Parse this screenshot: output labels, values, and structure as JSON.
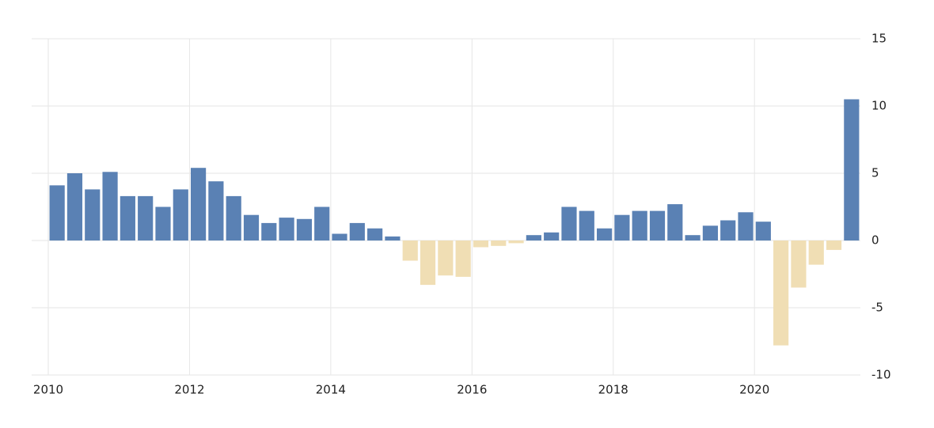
{
  "chart_data": {
    "type": "bar",
    "categories": [
      "2010",
      null,
      null,
      null,
      null,
      null,
      null,
      null,
      "2012",
      null,
      null,
      null,
      null,
      null,
      null,
      null,
      "2014",
      null,
      null,
      null,
      null,
      null,
      null,
      null,
      "2016",
      null,
      null,
      null,
      null,
      null,
      null,
      null,
      "2018",
      null,
      null,
      null,
      null,
      null,
      null,
      null,
      "2020",
      null,
      null,
      null,
      null,
      null
    ],
    "values": [
      4.1,
      5.0,
      3.8,
      5.1,
      3.3,
      3.3,
      2.5,
      3.8,
      5.4,
      4.4,
      3.3,
      1.9,
      1.3,
      1.7,
      1.6,
      2.5,
      0.5,
      1.3,
      0.9,
      0.3,
      -1.5,
      -3.3,
      -2.6,
      -2.7,
      -0.5,
      -0.4,
      -0.2,
      0.4,
      0.6,
      2.5,
      2.2,
      0.9,
      1.9,
      2.2,
      2.2,
      2.7,
      0.4,
      1.1,
      1.5,
      2.1,
      1.4,
      -7.8,
      -3.5,
      -1.8,
      -0.7,
      10.5
    ],
    "color": "#5a81b4",
    "negative_color": "#f0deb4",
    "ylim": [
      -10,
      15
    ],
    "yticks": [
      -10,
      -5,
      0,
      5,
      10,
      15
    ],
    "grid": true
  }
}
